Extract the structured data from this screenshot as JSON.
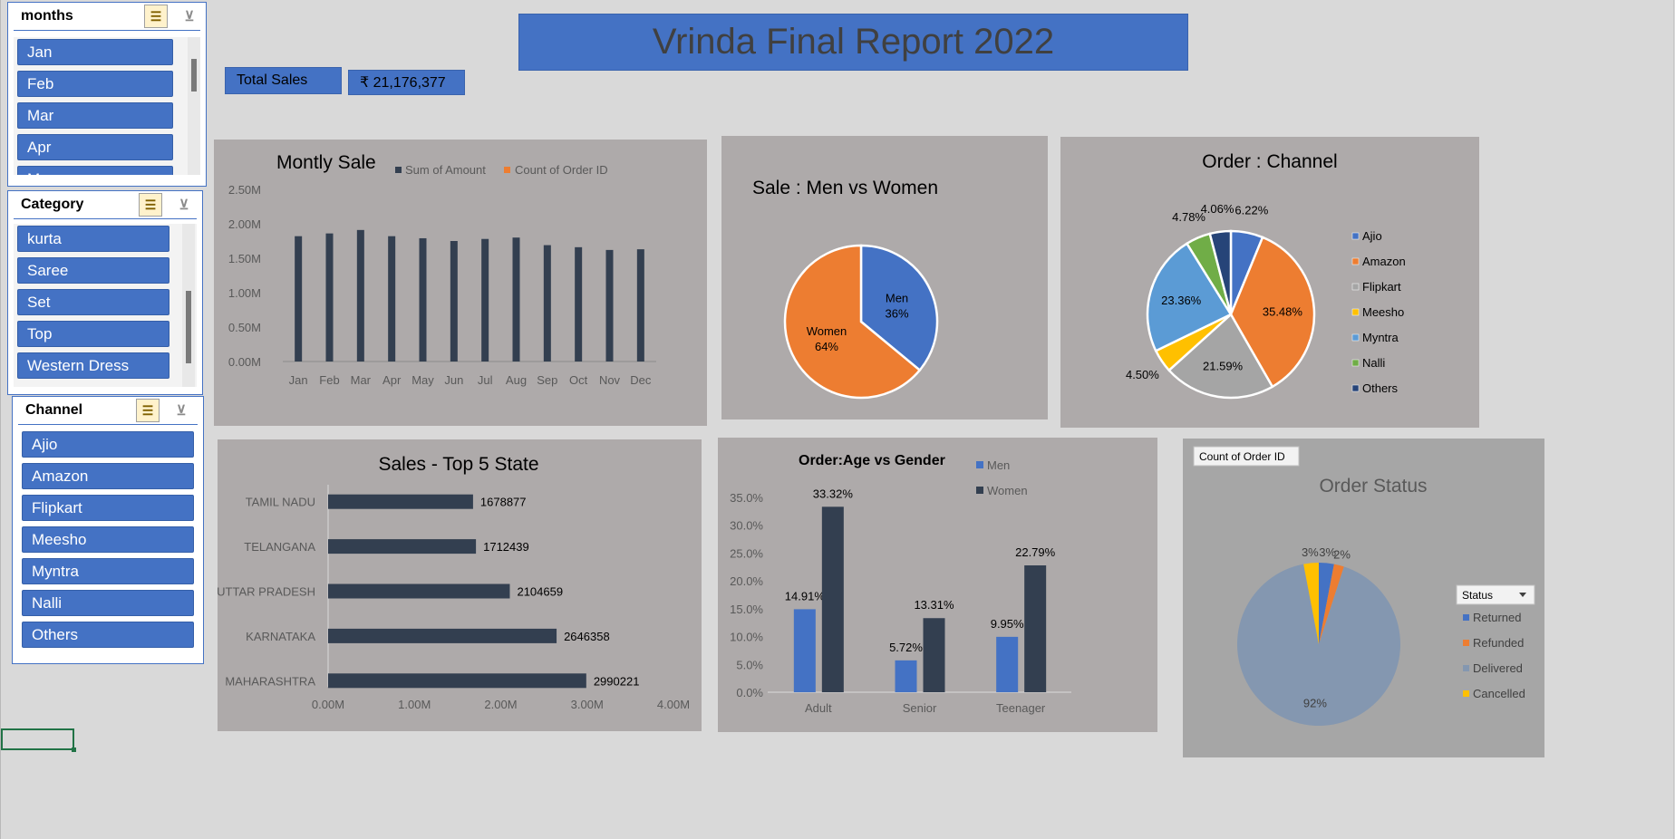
{
  "report_title": "Vrinda Final Report 2022",
  "kpi": {
    "label": "Total Sales",
    "value": "₹ 21,176,377"
  },
  "slicers": {
    "months": {
      "title": "months",
      "items": [
        "Jan",
        "Feb",
        "Mar",
        "Apr",
        "May"
      ]
    },
    "category": {
      "title": "Category",
      "items": [
        "kurta",
        "Saree",
        "Set",
        "Top",
        "Western Dress"
      ]
    },
    "channel": {
      "title": "Channel",
      "items": [
        "Ajio",
        "Amazon",
        "Flipkart",
        "Meesho",
        "Myntra",
        "Nalli",
        "Others"
      ]
    }
  },
  "colors": {
    "blue": "#4472c4",
    "navy": "#333f50",
    "orange": "#ed7d31",
    "gray": "#a5a5a5",
    "yellow": "#ffc000",
    "lightblue": "#5b9bd5",
    "green": "#70ad47",
    "darknavy": "#264478",
    "panel": "#aeaaaa",
    "slate": "#8497b0"
  },
  "chart_data": [
    {
      "id": "monthly",
      "type": "bar",
      "title": "Montly Sale",
      "legend": [
        "Sum of Amount",
        "Count of Order ID"
      ],
      "categories": [
        "Jan",
        "Feb",
        "Mar",
        "Apr",
        "May",
        "Jun",
        "Jul",
        "Aug",
        "Sep",
        "Oct",
        "Nov",
        "Dec"
      ],
      "series": [
        {
          "name": "Sum of Amount",
          "values": [
            1.82,
            1.86,
            1.91,
            1.82,
            1.79,
            1.75,
            1.78,
            1.8,
            1.69,
            1.66,
            1.62,
            1.63
          ]
        }
      ],
      "yticks": [
        "0.00M",
        "0.50M",
        "1.00M",
        "1.50M",
        "2.00M",
        "2.50M"
      ],
      "ylim": [
        0,
        2.5
      ]
    },
    {
      "id": "gender",
      "type": "pie",
      "title": "Sale : Men vs  Women",
      "slices": [
        {
          "label": "Men",
          "value": 36,
          "text": "36%"
        },
        {
          "label": "Women",
          "value": 64,
          "text": "64%"
        }
      ]
    },
    {
      "id": "channel",
      "type": "pie",
      "title": "Order : Channel",
      "slices": [
        {
          "label": "Ajio",
          "value": 6.22,
          "text": "6.22%"
        },
        {
          "label": "Amazon",
          "value": 35.48,
          "text": "35.48%"
        },
        {
          "label": "Flipkart",
          "value": 21.59,
          "text": "21.59%"
        },
        {
          "label": "Meesho",
          "value": 4.5,
          "text": "4.50%"
        },
        {
          "label": "Myntra",
          "value": 23.36,
          "text": "23.36%"
        },
        {
          "label": "Nalli",
          "value": 4.78,
          "text": "4.78%"
        },
        {
          "label": "Others",
          "value": 4.06,
          "text": "4.06%"
        }
      ]
    },
    {
      "id": "states",
      "type": "bar",
      "title": "Sales - Top 5 State",
      "categories": [
        "TAMIL NADU",
        "TELANGANA",
        "UTTAR PRADESH",
        "KARNATAKA",
        "MAHARASHTRA"
      ],
      "values": [
        1678877,
        1712439,
        2104659,
        2646358,
        2990221
      ],
      "labels": [
        "1678877",
        "1712439",
        "2104659",
        "2646358",
        "2990221"
      ],
      "xticks": [
        "0.00M",
        "1.00M",
        "2.00M",
        "3.00M",
        "4.00M"
      ],
      "xlim": [
        0,
        4000000
      ]
    },
    {
      "id": "agegender",
      "type": "bar",
      "title": "Order:Age vs Gender",
      "categories": [
        "Adult",
        "Senior",
        "Teenager"
      ],
      "series": [
        {
          "name": "Men",
          "values": [
            14.91,
            5.72,
            9.95
          ],
          "labels": [
            "14.91%",
            "5.72%",
            "9.95%"
          ]
        },
        {
          "name": "Women",
          "values": [
            33.32,
            13.31,
            22.79
          ],
          "labels": [
            "33.32%",
            "13.31%",
            "22.79%"
          ]
        }
      ],
      "yticks": [
        "0.0%",
        "5.0%",
        "10.0%",
        "15.0%",
        "20.0%",
        "25.0%",
        "30.0%",
        "35.0%"
      ],
      "ylim": [
        0,
        35
      ]
    },
    {
      "id": "status",
      "type": "pie",
      "title": "Order Status",
      "field_button": "Count of Order ID",
      "legend_title": "Status",
      "slices": [
        {
          "label": "Returned",
          "value": 3,
          "text": "3%"
        },
        {
          "label": "Refunded",
          "value": 2,
          "text": "2%"
        },
        {
          "label": "Delivered",
          "value": 92,
          "text": "92%"
        },
        {
          "label": "Cancelled",
          "value": 3,
          "text": "3%"
        }
      ]
    }
  ]
}
